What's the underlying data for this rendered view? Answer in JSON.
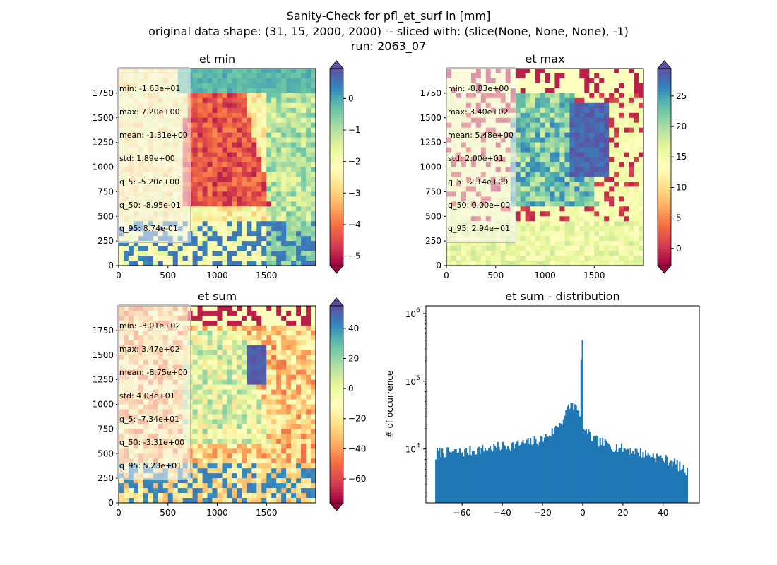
{
  "suptitle": [
    "Sanity-Check for pfl_et_surf in [mm]",
    "original data shape: (31, 15, 2000, 2000) -- sliced with: (slice(None, None, None), -1)",
    "run: 2063_07"
  ],
  "colors": {
    "spectral": [
      "#9e0142",
      "#d53e4f",
      "#f46d43",
      "#fdae61",
      "#fee08b",
      "#ffffbf",
      "#e6f598",
      "#abdda4",
      "#66c2a5",
      "#3288bd",
      "#5e4fa2"
    ],
    "hist_bar": "#1f77b4"
  },
  "chart_data": [
    {
      "type": "heatmap",
      "title": "et min",
      "x_ticks": [
        0,
        500,
        1000,
        1500
      ],
      "y_ticks": [
        0,
        250,
        500,
        750,
        1000,
        1250,
        1500,
        1750
      ],
      "xlim": [
        0,
        2000
      ],
      "ylim": [
        0,
        2000
      ],
      "colorbar": {
        "min": -5.3,
        "max": 0.95,
        "ticks": [
          -5,
          -4,
          -3,
          -2,
          -1,
          0
        ],
        "tick_labels": [
          "−5",
          "−4",
          "−3",
          "−2",
          "−1",
          "0"
        ],
        "extend": "both"
      },
      "stats": [
        "min: -1.63e+01",
        "max: 7.20e+00",
        "mean: -1.31e+00",
        "std: 1.89e+00",
        "q_5: -5.20e+00",
        "q_50: -8.95e-01",
        "q_95: 8.74e-01"
      ]
    },
    {
      "type": "heatmap",
      "title": "et max",
      "x_ticks": [
        0,
        500,
        1000,
        1500
      ],
      "y_ticks": [
        0,
        250,
        500,
        750,
        1000,
        1250,
        1500,
        1750
      ],
      "xlim": [
        0,
        2000
      ],
      "ylim": [
        0,
        2000
      ],
      "colorbar": {
        "min": -2.8,
        "max": 29.5,
        "ticks": [
          0,
          5,
          10,
          15,
          20,
          25
        ],
        "tick_labels": [
          "0",
          "5",
          "10",
          "15",
          "20",
          "25"
        ],
        "extend": "both"
      },
      "stats": [
        "min: -8.83e+00",
        "max: 3.40e+02",
        "mean: 5.48e+00",
        "std: 2.00e+01",
        "q_5: -2.14e+00",
        "q_50: 0.00e+00",
        "q_95: 2.94e+01"
      ]
    },
    {
      "type": "heatmap",
      "title": "et sum",
      "x_ticks": [
        0,
        500,
        1000,
        1500
      ],
      "y_ticks": [
        0,
        250,
        500,
        750,
        1000,
        1250,
        1500,
        1750
      ],
      "xlim": [
        0,
        2000
      ],
      "ylim": [
        0,
        2000
      ],
      "colorbar": {
        "min": -76,
        "max": 55,
        "ticks": [
          -60,
          -40,
          -20,
          0,
          20,
          40
        ],
        "tick_labels": [
          "−60",
          "−40",
          "−20",
          "0",
          "20",
          "40"
        ],
        "extend": "both"
      },
      "stats": [
        "min: -3.01e+02",
        "max: 3.47e+02",
        "mean: -8.75e+00",
        "std: 4.03e+01",
        "q_5: -7.34e+01",
        "q_50: -3.31e+00",
        "q_95: 5.23e+01"
      ]
    },
    {
      "type": "bar",
      "title": "et sum - distribution",
      "ylabel": "# of occurrence",
      "yscale": "log",
      "xlim": [
        -78,
        58
      ],
      "ylim": [
        1600,
        1300000
      ],
      "x_ticks": [
        -60,
        -40,
        -20,
        0,
        20,
        40
      ],
      "x_tick_labels": [
        "−60",
        "−40",
        "−20",
        "0",
        "20",
        "40"
      ],
      "y_ticks": [
        10000,
        100000,
        1000000
      ],
      "y_tick_labels": [
        [
          "10",
          "4"
        ],
        [
          "10",
          "5"
        ],
        [
          "10",
          "6"
        ]
      ],
      "bin_range": [
        -73.4,
        52.3
      ],
      "bins": 200,
      "shape_points": [
        [
          -73.4,
          9000
        ],
        [
          -60,
          9000
        ],
        [
          -40,
          11000
        ],
        [
          -30,
          12000
        ],
        [
          -20,
          14000
        ],
        [
          -15,
          18000
        ],
        [
          -10,
          27000
        ],
        [
          -7,
          42000
        ],
        [
          -5,
          47000
        ],
        [
          -3,
          38000
        ],
        [
          -1.5,
          30000
        ],
        [
          -0.3,
          850000
        ],
        [
          0.3,
          20000
        ],
        [
          5,
          14000
        ],
        [
          15,
          11000
        ],
        [
          25,
          9500
        ],
        [
          35,
          8000
        ],
        [
          45,
          6500
        ],
        [
          52.3,
          4500
        ]
      ]
    }
  ]
}
